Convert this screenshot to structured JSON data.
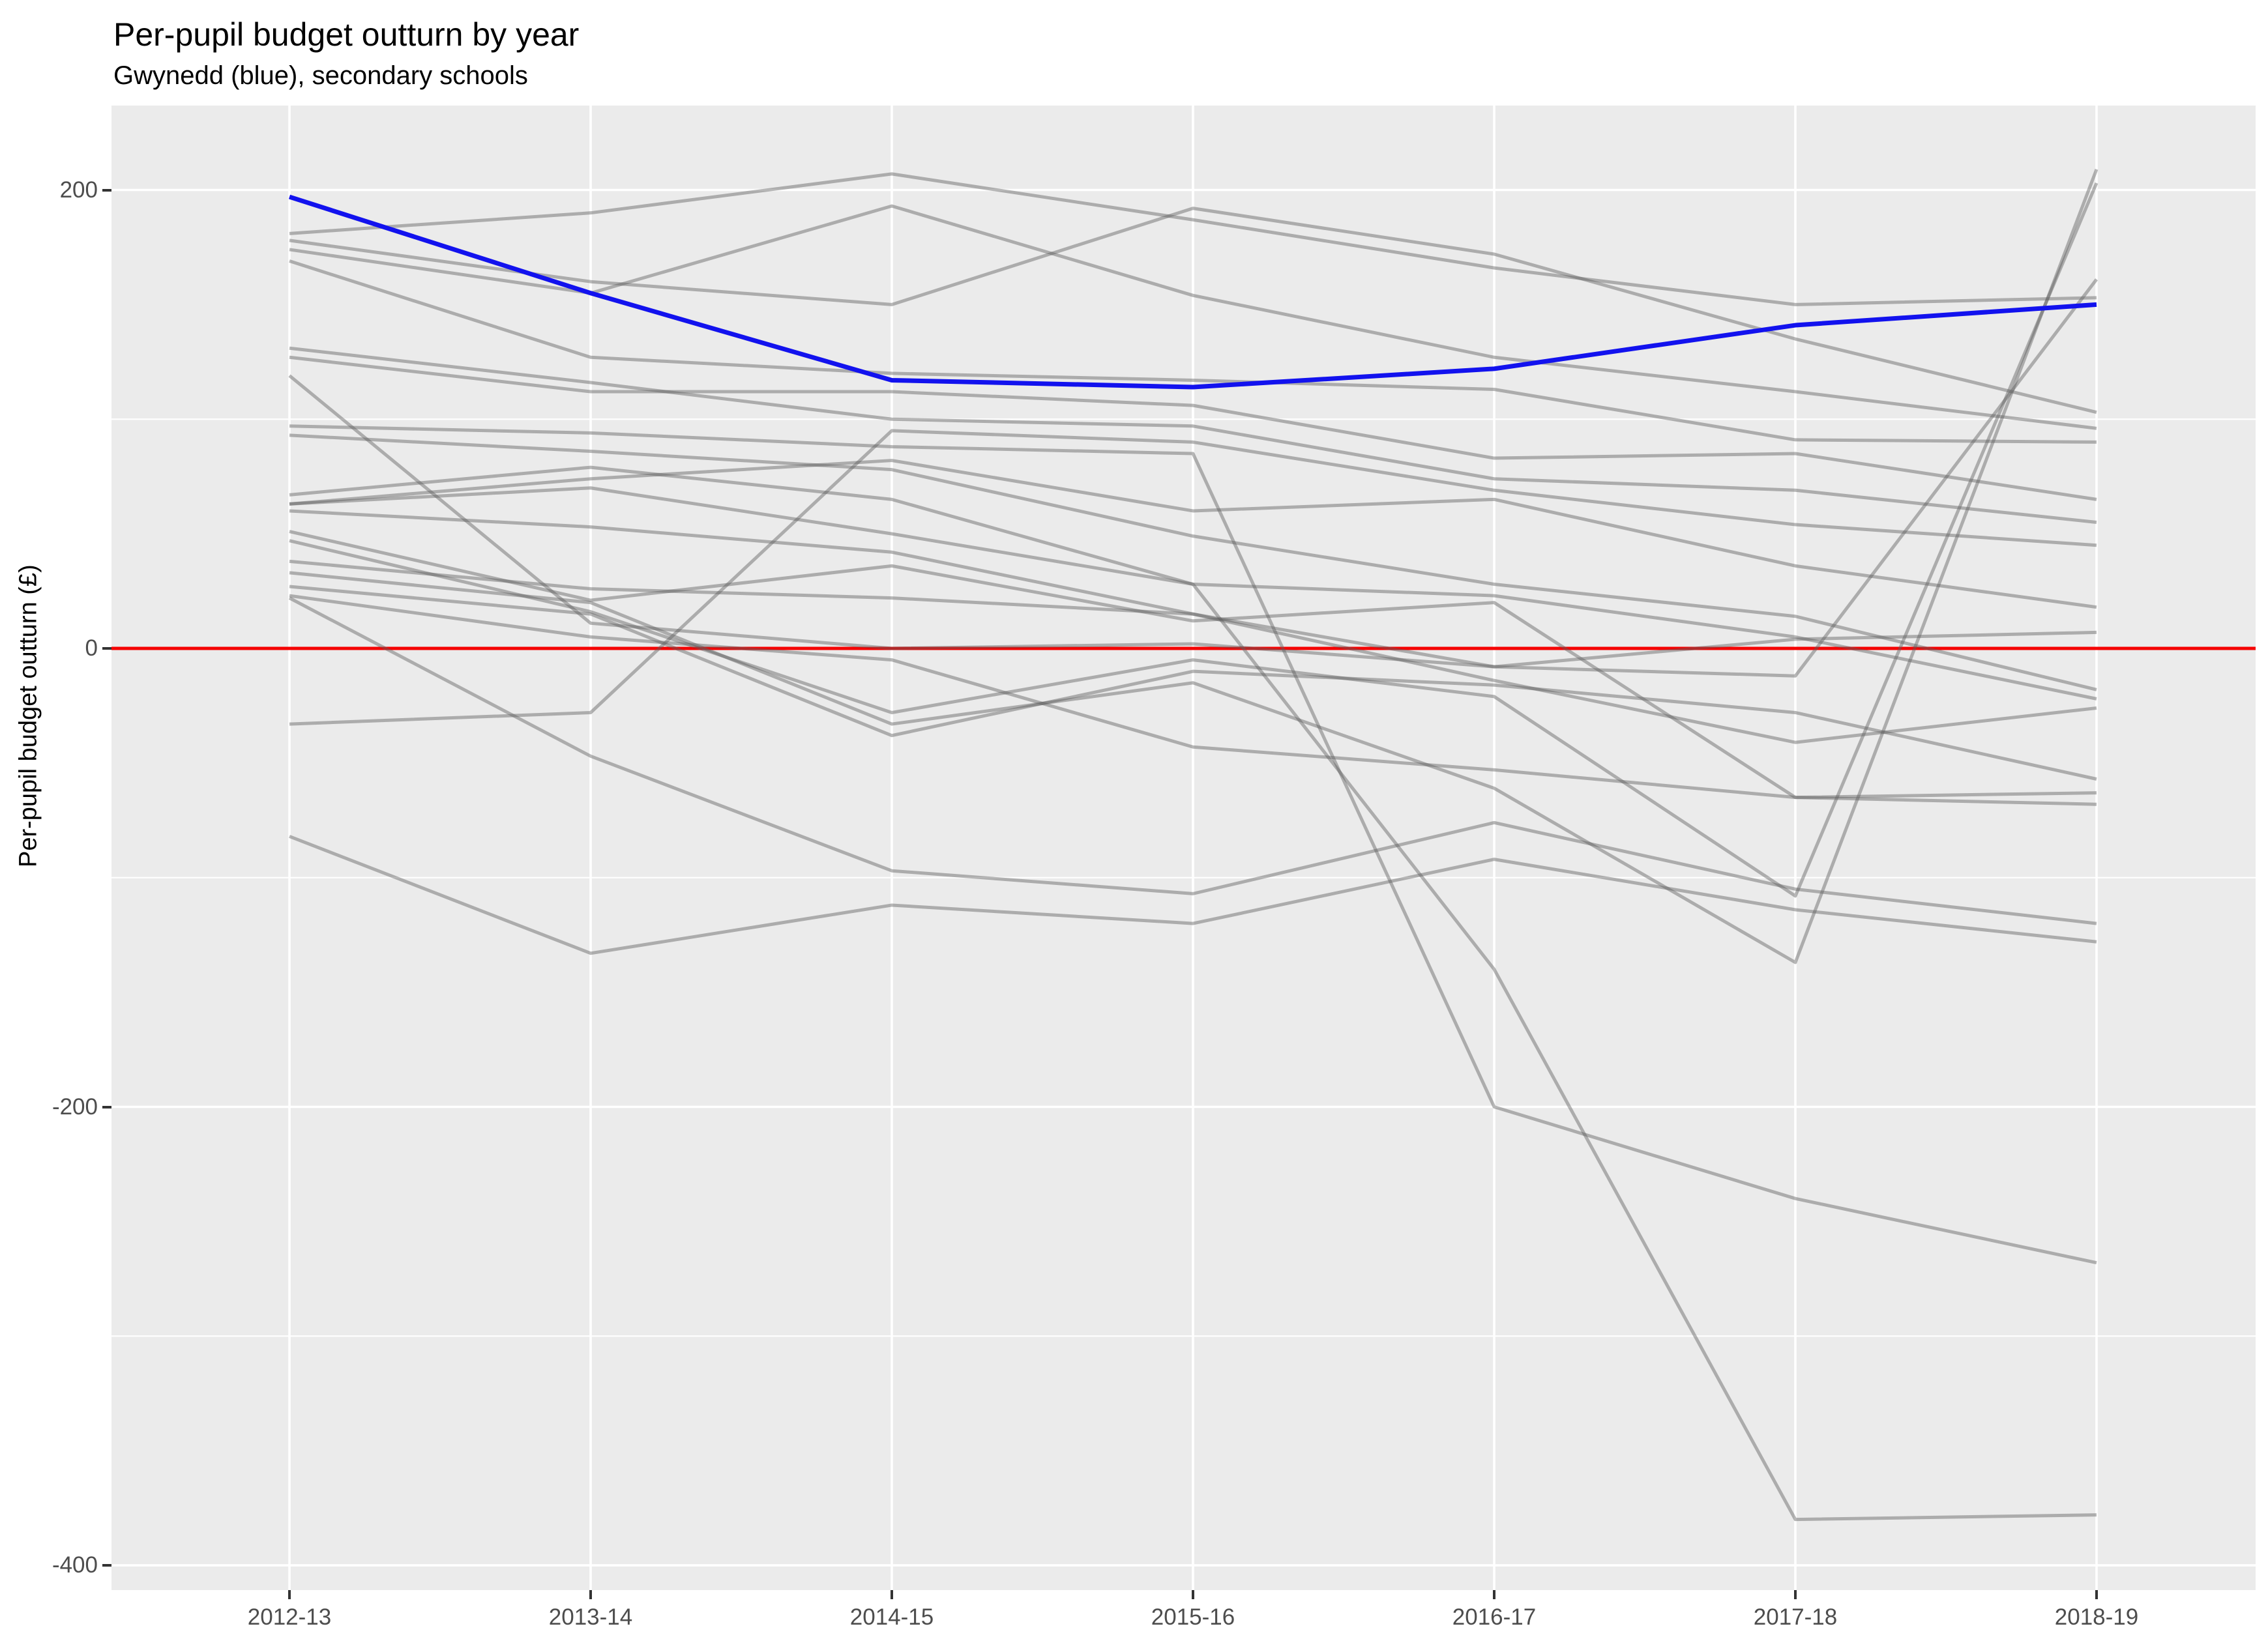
{
  "chart_data": {
    "type": "line",
    "title": "Per-pupil budget outturn by year",
    "subtitle": "Gwynedd (blue), secondary schools",
    "ylabel": "Per-pupil budget outturn (£)",
    "xlabel": "",
    "x_categories": [
      "2012-13",
      "2013-14",
      "2014-15",
      "2015-16",
      "2016-17",
      "2017-18",
      "2018-19"
    ],
    "y_tick_values": [
      200,
      0,
      -200,
      -400
    ],
    "y_tick_labels": [
      "200",
      "0",
      "-200",
      "-400"
    ],
    "y_minor_values": [
      100,
      -100,
      -300
    ],
    "ylim": [
      -411,
      234
    ],
    "grid": "on",
    "legend": "none",
    "zero_reference_line": {
      "value": 0,
      "color": "#F50000"
    },
    "highlight_series": {
      "name": "Gwynedd",
      "color": "#1212EE",
      "values": [
        197,
        155,
        117,
        114,
        122,
        141,
        150
      ]
    },
    "background_series_color": "#5F5F5F",
    "background_series_opacity": 0.45,
    "series": [
      {
        "values": [
          181,
          190,
          207,
          187,
          166,
          150,
          153
        ]
      },
      {
        "values": [
          178,
          160,
          150,
          192,
          172,
          135,
          103
        ]
      },
      {
        "values": [
          174,
          155,
          193,
          154,
          127,
          112,
          96
        ]
      },
      {
        "values": [
          169,
          127,
          120,
          117,
          113,
          91,
          90
        ]
      },
      {
        "values": [
          131,
          116,
          100,
          97,
          74,
          69,
          55
        ]
      },
      {
        "values": [
          127,
          112,
          112,
          106,
          83,
          85,
          65
        ]
      },
      {
        "values": [
          119,
          11,
          0,
          2,
          -8,
          4,
          7
        ]
      },
      {
        "values": [
          97,
          94,
          88,
          85,
          -200,
          -240,
          -268
        ]
      },
      {
        "values": [
          93,
          86,
          78,
          49,
          28,
          14,
          -18
        ]
      },
      {
        "values": [
          67,
          79,
          65,
          28,
          23,
          5,
          -22
        ]
      },
      {
        "values": [
          63,
          74,
          82,
          60,
          65,
          36,
          18
        ]
      },
      {
        "values": [
          60,
          53,
          42,
          15,
          -14,
          -41,
          -26
        ]
      },
      {
        "values": [
          51,
          21,
          36,
          12,
          20,
          -65,
          -68
        ]
      },
      {
        "values": [
          47,
          16,
          -28,
          -5,
          -21,
          -108,
          203
        ]
      },
      {
        "values": [
          38,
          26,
          22,
          15,
          -8,
          -12,
          161
        ]
      },
      {
        "values": [
          33,
          20,
          -33,
          -15,
          -61,
          -137,
          209
        ]
      },
      {
        "values": [
          27,
          15,
          -38,
          -10,
          -16,
          -28,
          -57
        ]
      },
      {
        "values": [
          22,
          -47,
          -97,
          -107,
          -76,
          -105,
          -120
        ]
      },
      {
        "values": [
          -33,
          -28,
          95,
          90,
          69,
          54,
          45
        ]
      },
      {
        "values": [
          -82,
          -133,
          -112,
          -120,
          -92,
          -114,
          -128
        ]
      },
      {
        "values": [
          63,
          70,
          50,
          28,
          -140,
          -380,
          -378
        ]
      },
      {
        "values": [
          23,
          5,
          -5,
          -43,
          -53,
          -65,
          -63
        ]
      }
    ],
    "panel_background": "#EBEBEB",
    "gridline_color": "#FFFFFF",
    "tick_label_color": "#4D4D4D",
    "tick_mark_color": "#333333"
  }
}
